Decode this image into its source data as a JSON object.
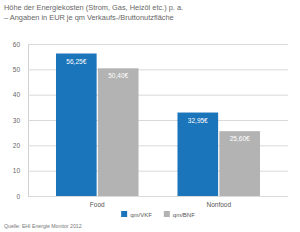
{
  "chart_data": {
    "type": "bar",
    "title": "Höhe der Energiekosten (Strom, Gas, Heizöl etc.) p. a.",
    "subtitle": "– Angaben in EUR je qm Verkaufs-/Bruttonutzfläche",
    "categories": [
      "Food",
      "Nonfood"
    ],
    "series": [
      {
        "name": "qm/VKF",
        "color": "#1b75bb",
        "values": [
          56.25,
          32.95
        ],
        "value_labels": [
          "56,25€",
          "32,95€"
        ]
      },
      {
        "name": "qm/BNF",
        "color": "#b3b3b3",
        "values": [
          50.4,
          25.6
        ],
        "value_labels": [
          "50,40€",
          "25,60€"
        ]
      }
    ],
    "ylim": [
      0,
      60
    ],
    "yticks": [
      0,
      10,
      20,
      30,
      40,
      50,
      60
    ],
    "grid": true,
    "legend": "bottom",
    "data_labels": true,
    "source": "Quelle: EHI Energie Monitor 2012"
  }
}
